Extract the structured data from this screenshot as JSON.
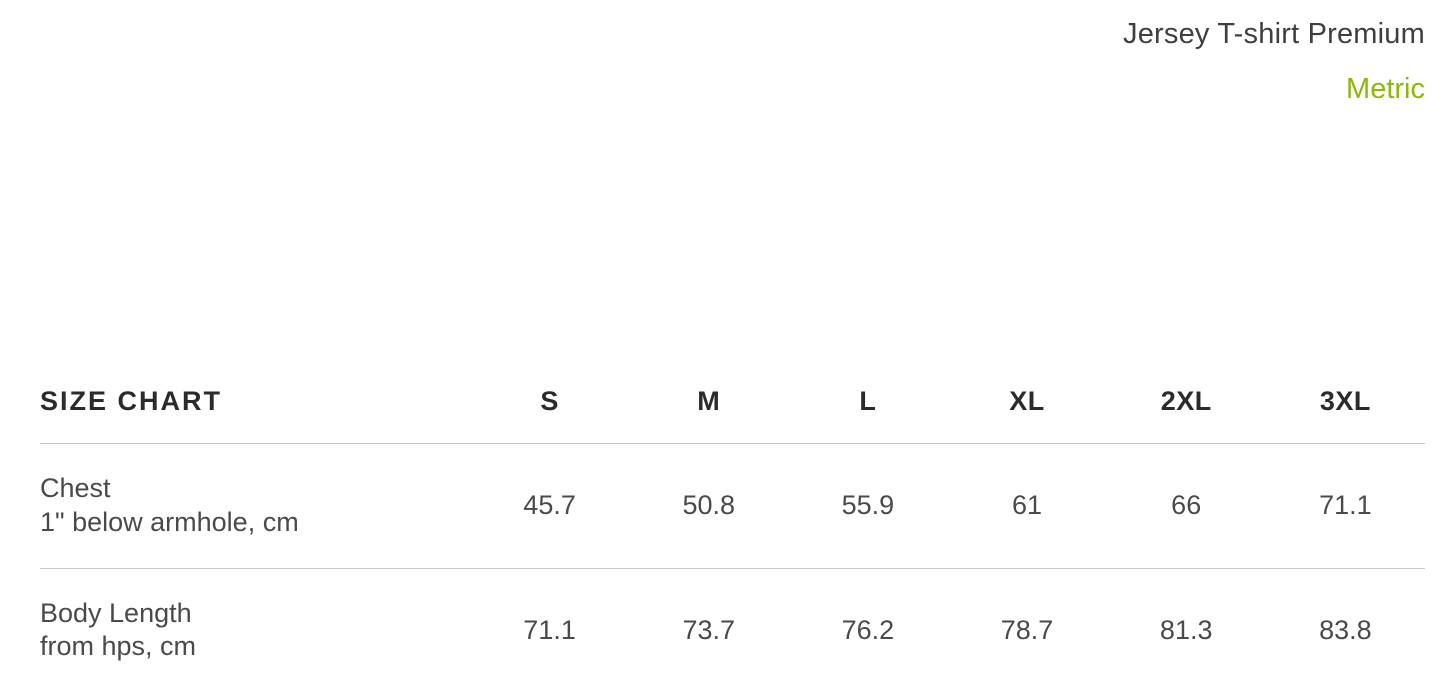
{
  "header": {
    "product_title": "Jersey T-shirt Premium",
    "unit_toggle_label": "Metric",
    "unit_toggle_color": "#8cb80a"
  },
  "table": {
    "title": "SIZE CHART",
    "columns": [
      "S",
      "M",
      "L",
      "XL",
      "2XL",
      "3XL"
    ],
    "rows": [
      {
        "label_line1": "Chest",
        "label_line2": "1\" below armhole, cm",
        "values": [
          "45.7",
          "50.8",
          "55.9",
          "61",
          "66",
          "71.1"
        ]
      },
      {
        "label_line1": "Body Length",
        "label_line2": "from hps, cm",
        "values": [
          "71.1",
          "73.7",
          "76.2",
          "78.7",
          "81.3",
          "83.8"
        ]
      }
    ],
    "border_color": "#c9c9c9",
    "header_text_color": "#2b2b2b",
    "body_text_color": "#4a4a4a",
    "header_fontsize": 27,
    "body_fontsize": 27
  },
  "background_color": "#ffffff"
}
